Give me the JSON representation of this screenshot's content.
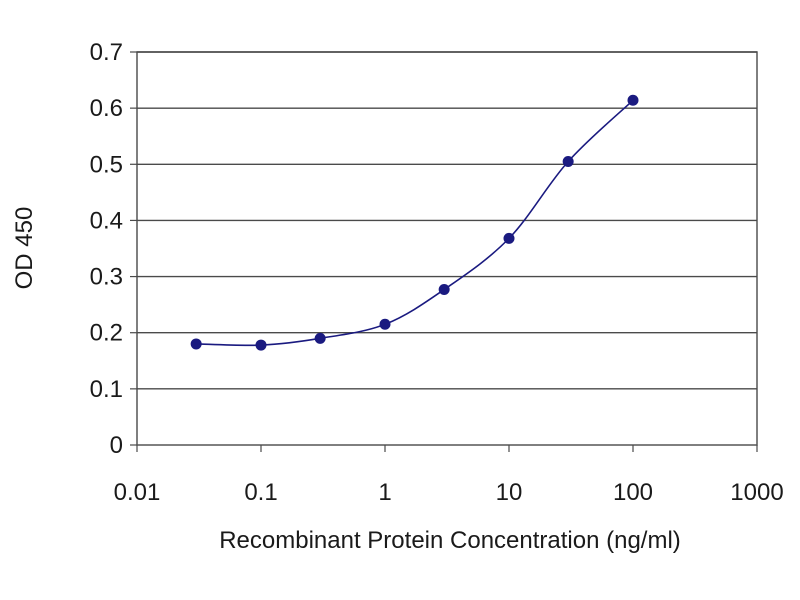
{
  "chart_data": {
    "type": "line",
    "title": "",
    "xlabel": "Recombinant Protein Concentration (ng/ml)",
    "ylabel": "OD 450",
    "x_scale": "log",
    "xlim": [
      0.01,
      1000
    ],
    "ylim": [
      0,
      0.7
    ],
    "x_ticks": [
      0.01,
      0.1,
      1,
      10,
      100,
      1000
    ],
    "x_tick_labels": [
      "0.01",
      "0.1",
      "1",
      "10",
      "100",
      "1000"
    ],
    "y_ticks": [
      0,
      0.1,
      0.2,
      0.3,
      0.4,
      0.5,
      0.6,
      0.7
    ],
    "y_tick_labels": [
      "0",
      "0.1",
      "0.2",
      "0.3",
      "0.4",
      "0.5",
      "0.6",
      "0.7"
    ],
    "grid": "horizontal",
    "legend": "none",
    "series": [
      {
        "x": [
          0.03,
          0.1,
          0.3,
          1,
          3,
          10,
          30,
          100
        ],
        "y": [
          0.18,
          0.178,
          0.19,
          0.215,
          0.277,
          0.368,
          0.505,
          0.614
        ],
        "color": "#1a1a80"
      }
    ]
  }
}
